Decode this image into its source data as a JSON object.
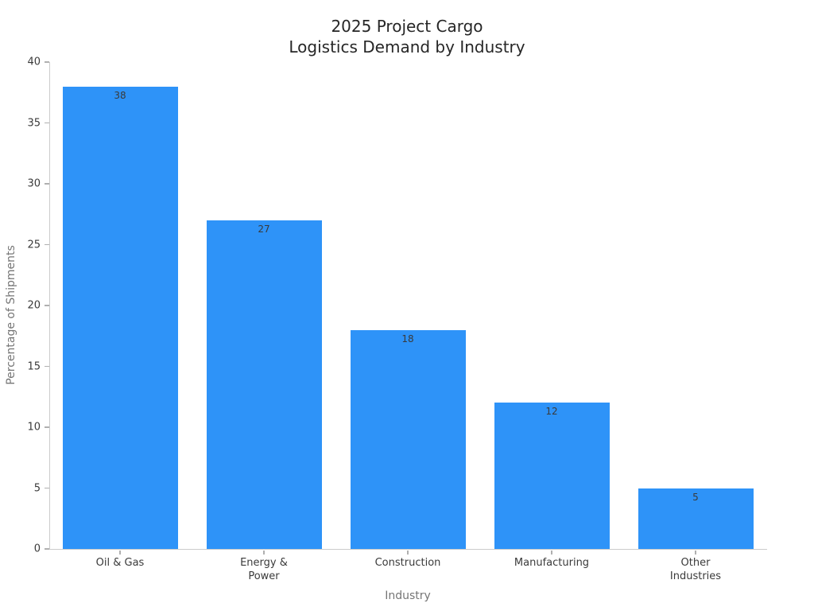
{
  "chart_data": {
    "type": "bar",
    "title": "2025 Project Cargo\nLogistics Demand by Industry",
    "xlabel": "Industry",
    "ylabel": "Percentage of Shipments",
    "categories": [
      "Oil & Gas",
      "Energy &\nPower",
      "Construction",
      "Manufacturing",
      "Other\nIndustries"
    ],
    "values": [
      38,
      27,
      18,
      12,
      5
    ],
    "yticks": [
      0,
      5,
      10,
      15,
      20,
      25,
      30,
      35,
      40
    ],
    "ylim": [
      0,
      40
    ],
    "bar_color": "#2E93F8",
    "spine_color": "#cccccc",
    "grid": false,
    "legend": "none",
    "value_labels_shown": true
  }
}
